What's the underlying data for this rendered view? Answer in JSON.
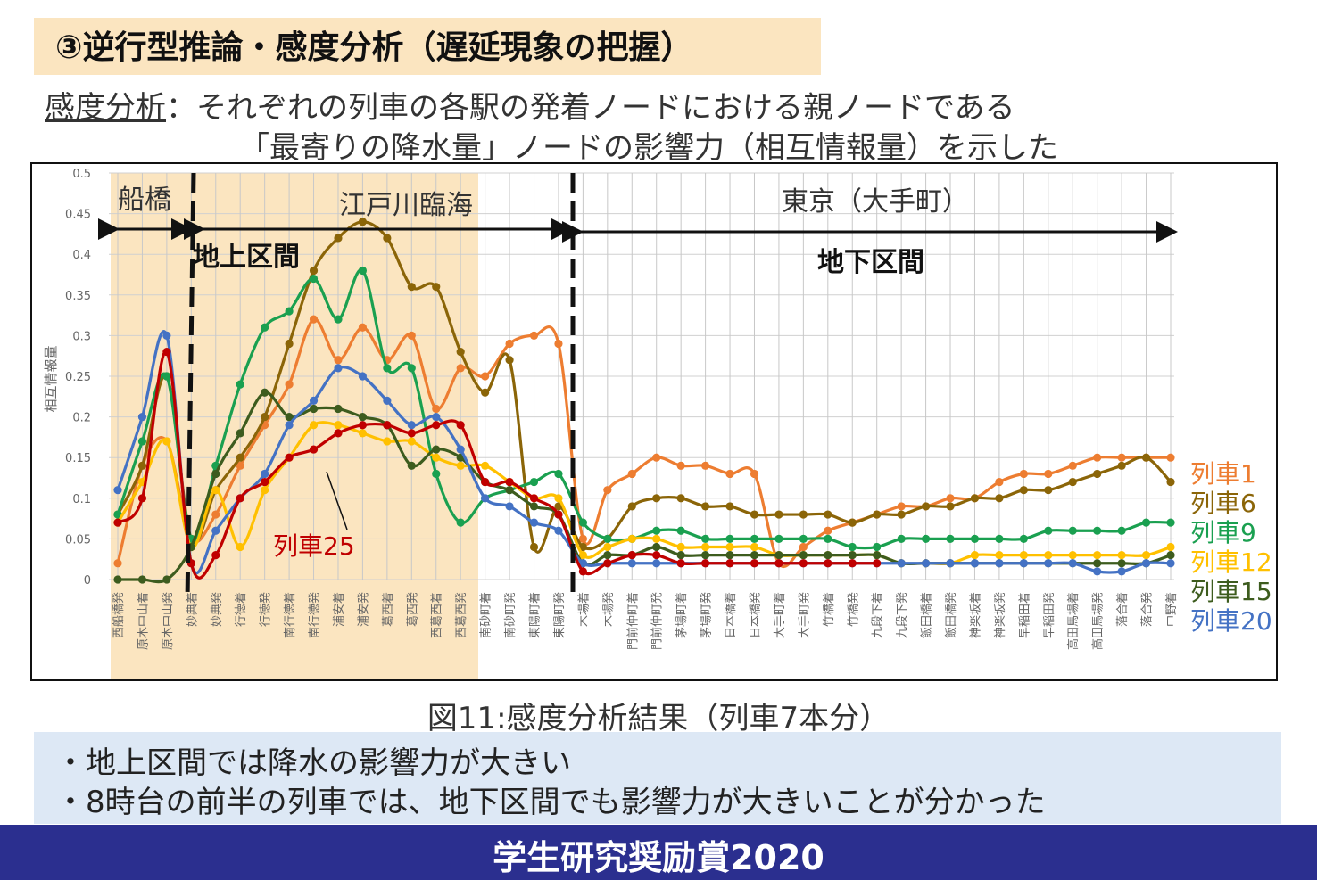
{
  "slide": {
    "title": "③逆行型推論・感度分析（遅延現象の把握）",
    "desc_term": "感度分析",
    "desc_line1_rest": "：それぞれの列車の各駅の発着ノードにおける親ノードである",
    "desc_line2": "「最寄りの降水量」ノードの影響力（相互情報量）を示した",
    "caption": "図11:感度分析結果（列車7本分）",
    "note1": "・地上区間では降水の影響力が大きい",
    "note2": "・8時台の前半の列車では、地下区間でも影響力が大きいことが分かった",
    "footer": "学生研究奨励賞2020"
  },
  "chart_data": {
    "type": "line",
    "ylabel": "相互情報量",
    "ylim": [
      0,
      0.5
    ],
    "yticks": [
      "0",
      "0.05",
      "0.1",
      "0.15",
      "0.2",
      "0.25",
      "0.3",
      "0.35",
      "0.4",
      "0.45",
      "0.5"
    ],
    "categories": [
      "西船橋発",
      "原木中山着",
      "原木中山発",
      "妙典着",
      "妙典発",
      "行徳着",
      "行徳発",
      "南行徳着",
      "南行徳発",
      "浦安着",
      "浦安発",
      "葛西着",
      "葛西発",
      "西葛西着",
      "西葛西発",
      "南砂町着",
      "南砂町発",
      "東陽町着",
      "東陽町発",
      "木場着",
      "木場発",
      "門前仲町着",
      "門前仲町発",
      "茅場町着",
      "茅場町発",
      "日本橋着",
      "日本橋発",
      "大手町着",
      "大手町発",
      "竹橋着",
      "竹橋発",
      "九段下着",
      "九段下発",
      "飯田橋着",
      "飯田橋発",
      "神楽坂着",
      "神楽坂発",
      "早稲田着",
      "早稲田発",
      "高田馬場着",
      "高田馬場発",
      "落合着",
      "落合発",
      "中野着"
    ],
    "region_labels": {
      "funabashi": "船橋",
      "edogawa": "江戸川臨海",
      "tokyo": "東京（大手町）"
    },
    "section_labels": {
      "above_ground": "地上区間",
      "underground": "地下区間"
    },
    "annotation": "列車25",
    "series": [
      {
        "name": "列車1",
        "color": "#ed7d31",
        "values": [
          0.02,
          0.14,
          0.17,
          0.05,
          0.08,
          0.14,
          0.19,
          0.24,
          0.32,
          0.27,
          0.31,
          0.27,
          0.3,
          0.21,
          0.26,
          0.25,
          0.29,
          0.3,
          0.29,
          0.05,
          0.11,
          0.13,
          0.15,
          0.14,
          0.14,
          0.13,
          0.13,
          0.02,
          0.04,
          0.06,
          0.07,
          0.08,
          0.09,
          0.09,
          0.1,
          0.1,
          0.12,
          0.13,
          0.13,
          0.14,
          0.15,
          0.15,
          0.15,
          0.15
        ]
      },
      {
        "name": "列車6",
        "color": "#8b6508",
        "values": [
          0.08,
          0.14,
          0.25,
          0.05,
          0.11,
          0.15,
          0.2,
          0.29,
          0.38,
          0.42,
          0.44,
          0.42,
          0.36,
          0.36,
          0.28,
          0.23,
          0.27,
          0.04,
          0.09,
          0.04,
          0.05,
          0.09,
          0.1,
          0.1,
          0.09,
          0.09,
          0.08,
          0.08,
          0.08,
          0.08,
          0.07,
          0.08,
          0.08,
          0.09,
          0.09,
          0.1,
          0.1,
          0.11,
          0.11,
          0.12,
          0.13,
          0.14,
          0.15,
          0.12
        ]
      },
      {
        "name": "列車9",
        "color": "#1aa050",
        "values": [
          0.08,
          0.17,
          0.25,
          0.05,
          0.14,
          0.24,
          0.31,
          0.33,
          0.37,
          0.32,
          0.38,
          0.26,
          0.26,
          0.13,
          0.07,
          0.1,
          0.11,
          0.12,
          0.13,
          0.07,
          0.05,
          0.05,
          0.06,
          0.06,
          0.05,
          0.05,
          0.05,
          0.05,
          0.05,
          0.05,
          0.04,
          0.04,
          0.05,
          0.05,
          0.05,
          0.05,
          0.05,
          0.05,
          0.06,
          0.06,
          0.06,
          0.06,
          0.07,
          0.07
        ]
      },
      {
        "name": "列車12",
        "color": "#ffc000",
        "values": [
          0.07,
          0.12,
          0.17,
          0.04,
          0.11,
          0.04,
          0.11,
          0.15,
          0.19,
          0.19,
          0.18,
          0.17,
          0.17,
          0.15,
          0.14,
          0.14,
          0.12,
          0.1,
          0.1,
          0.03,
          0.04,
          0.05,
          0.05,
          0.04,
          0.04,
          0.04,
          0.04,
          0.03,
          0.03,
          0.03,
          0.03,
          0.03,
          0.02,
          0.02,
          0.02,
          0.03,
          0.03,
          0.03,
          0.03,
          0.03,
          0.03,
          0.03,
          0.03,
          0.04
        ]
      },
      {
        "name": "列車15",
        "color": "#3d5c1e",
        "values": [
          0.0,
          0.0,
          0.0,
          0.04,
          0.13,
          0.18,
          0.23,
          0.2,
          0.21,
          0.21,
          0.2,
          0.19,
          0.14,
          0.16,
          0.15,
          0.12,
          0.11,
          0.09,
          0.08,
          0.02,
          0.03,
          0.03,
          0.04,
          0.03,
          0.03,
          0.03,
          0.03,
          0.03,
          0.03,
          0.03,
          0.03,
          0.03,
          0.02,
          0.02,
          0.02,
          0.02,
          0.02,
          0.02,
          0.02,
          0.02,
          0.02,
          0.02,
          0.02,
          0.03
        ]
      },
      {
        "name": "列車20",
        "color": "#4472c4",
        "values": [
          0.11,
          0.2,
          0.3,
          0.02,
          0.06,
          0.1,
          0.13,
          0.19,
          0.22,
          0.26,
          0.25,
          0.22,
          0.19,
          0.2,
          0.16,
          0.1,
          0.09,
          0.07,
          0.06,
          0.02,
          0.02,
          0.02,
          0.02,
          0.02,
          0.02,
          0.02,
          0.02,
          0.02,
          0.02,
          0.02,
          0.02,
          0.02,
          0.02,
          0.02,
          0.02,
          0.02,
          0.02,
          0.02,
          0.02,
          0.02,
          0.01,
          0.01,
          0.02,
          0.02
        ]
      },
      {
        "name": "列車25",
        "color": "#c00000",
        "values": [
          0.07,
          0.1,
          0.28,
          0.02,
          0.03,
          0.1,
          0.12,
          0.15,
          0.16,
          0.18,
          0.19,
          0.19,
          0.18,
          0.19,
          0.19,
          0.12,
          0.12,
          0.1,
          0.08,
          0.01,
          0.02,
          0.03,
          0.03,
          0.02,
          0.02,
          0.02,
          0.02,
          0.02,
          0.02,
          0.02,
          0.02,
          0.02,
          null,
          null,
          null,
          null,
          null,
          null,
          null,
          null,
          null,
          null,
          null,
          null
        ]
      }
    ],
    "legend": {
      "placement": "right",
      "items": [
        "列車1",
        "列車6",
        "列車9",
        "列車12",
        "列車15",
        "列車20"
      ]
    },
    "grid": true
  }
}
